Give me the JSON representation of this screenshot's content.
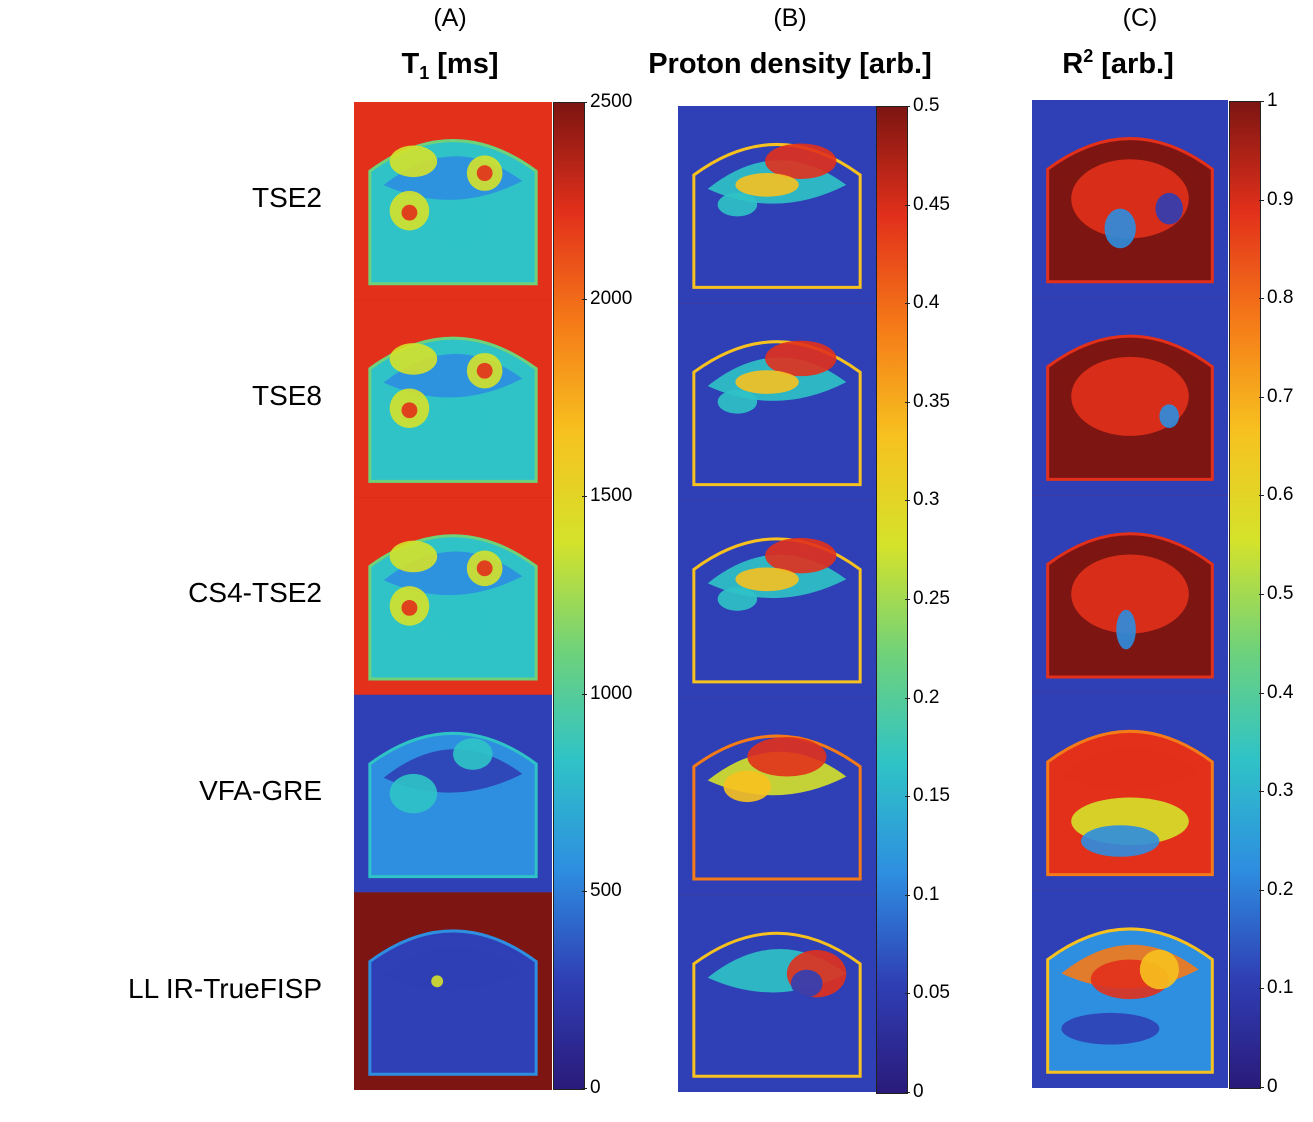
{
  "panels": [
    {
      "id": "A",
      "letter": "(A)",
      "title_main": "T",
      "title_script": "1",
      "title_rest": " [ms]",
      "colorbar_ticks": [
        "2500",
        "2000",
        "1500",
        "1000",
        "500",
        "0"
      ],
      "background": "#a8240f"
    },
    {
      "id": "B",
      "letter": "(B)",
      "title_main": "Proton density [arb.]",
      "title_script": "",
      "title_rest": "",
      "colorbar_ticks": [
        "0.5",
        "0.45",
        "0.4",
        "0.35",
        "0.3",
        "0.25",
        "0.2",
        "0.15",
        "0.1",
        "0.05",
        "0"
      ],
      "background": "#2c2c8c"
    },
    {
      "id": "C",
      "letter": "(C)",
      "title_main": "R",
      "title_script": "2",
      "title_rest": " [arb.]",
      "colorbar_ticks": [
        "1",
        "0.9",
        "0.8",
        "0.7",
        "0.6",
        "0.5",
        "0.4",
        "0.3",
        "0.2",
        "0.1",
        "0"
      ],
      "background": "#2c2c8c"
    }
  ],
  "rows": [
    "TSE2",
    "TSE8",
    "CS4-TSE2",
    "VFA-GRE",
    "LL IR-TrueFISP"
  ],
  "colormap": [
    "#2a1a7a",
    "#2f3fb5",
    "#2e8ee0",
    "#2fc3c7",
    "#6fd27a",
    "#d5e22a",
    "#f7c11f",
    "#f57a18",
    "#e2301b",
    "#7d1512"
  ]
}
